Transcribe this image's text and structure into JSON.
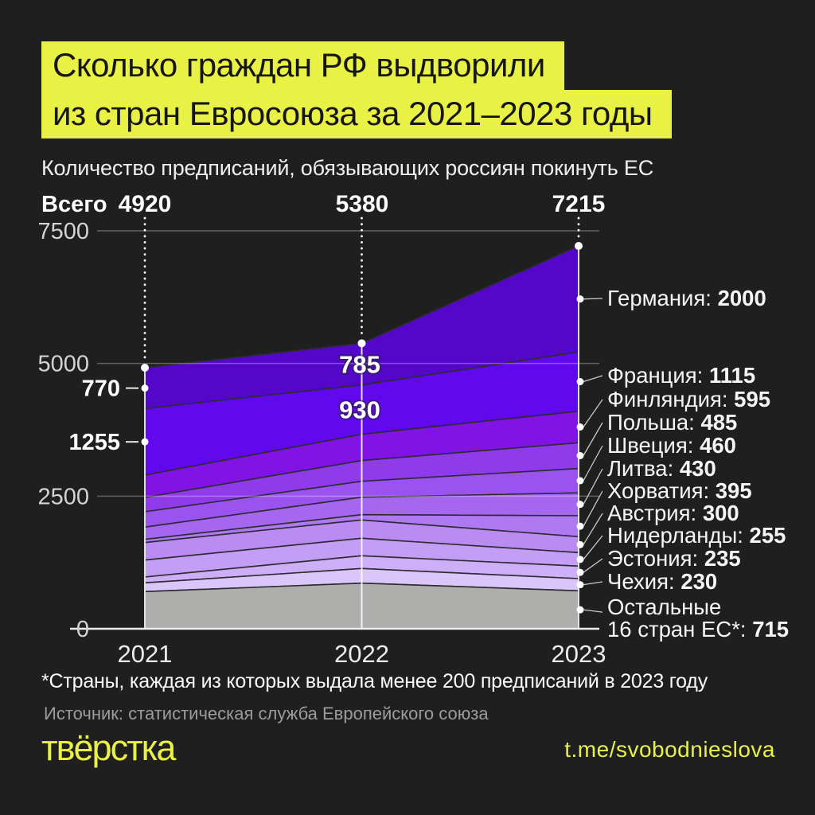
{
  "page": {
    "background": "#1f1f1f",
    "accent_yellow": "#e9f145"
  },
  "header": {
    "title_lines": [
      "Сколько граждан РФ выдворили",
      "из стран Евросоюза за 2021–2023 годы"
    ],
    "subtitle": "Количество предписаний, обязывающих россиян покинуть ЕС"
  },
  "totals_row": {
    "label": "Всего",
    "values": [
      "4920",
      "5380",
      "7215"
    ]
  },
  "chart_data": {
    "type": "area",
    "stacked": true,
    "title": "Количество предписаний, обязывающих россиян покинуть ЕС",
    "x_labels": [
      "2021",
      "2022",
      "2023"
    ],
    "totals": [
      4920,
      5380,
      7215
    ],
    "ylim": [
      0,
      7500
    ],
    "y_ticks": [
      0,
      2500,
      5000,
      7500
    ],
    "grid": true,
    "legend_position": "right",
    "series": [
      {
        "name": "Германия",
        "values": [
          770,
          785,
          2000
        ],
        "color": "#5407c8",
        "legend_value": "2000"
      },
      {
        "name": "Франция",
        "values": [
          1255,
          930,
          1115
        ],
        "color": "#6108ef",
        "legend_value": "1115"
      },
      {
        "name": "Финляндия",
        "values": [
          420,
          495,
          595
        ],
        "color": "#8113e4",
        "legend_value": "595"
      },
      {
        "name": "Польша",
        "values": [
          270,
          390,
          485
        ],
        "color": "#8f3bec",
        "legend_value": "485"
      },
      {
        "name": "Швеция",
        "values": [
          290,
          300,
          460
        ],
        "color": "#9b53ef",
        "legend_value": "460"
      },
      {
        "name": "Литва",
        "values": [
          230,
          330,
          430
        ],
        "color": "#a566f0",
        "legend_value": "430"
      },
      {
        "name": "Хорватия",
        "values": [
          60,
          100,
          395
        ],
        "color": "#af79f1",
        "legend_value": "395"
      },
      {
        "name": "Австрия",
        "values": [
          330,
          345,
          300
        ],
        "color": "#ba8bf3",
        "legend_value": "300"
      },
      {
        "name": "Нидерланды",
        "values": [
          320,
          330,
          255
        ],
        "color": "#c49df5",
        "legend_value": "255"
      },
      {
        "name": "Эстония",
        "values": [
          110,
          240,
          235
        ],
        "color": "#ceaff7",
        "legend_value": "235"
      },
      {
        "name": "Чехия",
        "values": [
          165,
          275,
          230
        ],
        "color": "#dbc6f9",
        "legend_value": "230"
      },
      {
        "name": "Остальные 16 стран ЕС*",
        "values": [
          700,
          860,
          715
        ],
        "color": "#aeaeac",
        "legend_lines": [
          "Остальные",
          "16 стран ЕС*:"
        ],
        "legend_value": "715"
      }
    ],
    "point_labels": [
      {
        "series_index": 0,
        "x_index": 0,
        "text": "770",
        "placement": "left"
      },
      {
        "series_index": 1,
        "x_index": 0,
        "text": "1255",
        "placement": "left"
      },
      {
        "series_index": 0,
        "x_index": 1,
        "text": "785",
        "placement": "on-chart"
      },
      {
        "series_index": 1,
        "x_index": 1,
        "text": "930",
        "placement": "on-chart"
      }
    ]
  },
  "footnote": "*Страны, каждая из которых выдала менее 200 предписаний в 2023 году",
  "source": "Источник: статистическая служба Европейского союза",
  "footer": {
    "logo": "твёрстка",
    "link": "t.me/svobodnieslova"
  }
}
